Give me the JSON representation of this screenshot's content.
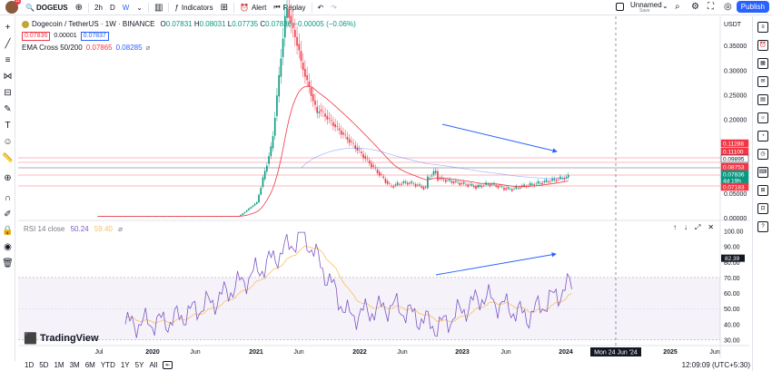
{
  "topbar": {
    "avatar_badge": "11",
    "symbol": "DOGEUS",
    "intervals": [
      "2h",
      "D",
      "W"
    ],
    "indicators_label": "Indicators",
    "alert_label": "Alert",
    "replay_label": "Replay",
    "layout_name": "Unnamed",
    "save_label": "Save",
    "publish_label": "Publish"
  },
  "legend": {
    "title": "Dogecoin / TetherUS · 1W · BINANCE",
    "o": "0.07831",
    "h": "0.08031",
    "l": "0.07735",
    "c": "0.07836",
    "change": "−0.00005 (−0.06%)",
    "bid": "0.07836",
    "spread": "0.00001",
    "ask": "0.07837",
    "ema_label": "EMA Cross 50/200",
    "ema1": "0.07865",
    "ema2": "0.08285",
    "rsi_label": "RSI 14 close",
    "rsi1": "50.24",
    "rsi2": "59.40"
  },
  "price_axis": {
    "currency": "USDT",
    "ticks": [
      "0.35000",
      "0.30000",
      "0.25000",
      "0.20000",
      "0.15000",
      "0.10000",
      "0.05000",
      "0.00000"
    ],
    "labels": [
      {
        "text": "0.11288",
        "color": "#f23645"
      },
      {
        "text": "0.11100",
        "color": "#f23645"
      },
      {
        "text": "0.09895",
        "color": "#131722"
      },
      {
        "text": "0.08753",
        "color": "#f23645"
      },
      {
        "text": "0.07836",
        "color": "#089981"
      },
      {
        "text": "4d 19h",
        "color": "#089981"
      },
      {
        "text": "0.07183",
        "color": "#f23645"
      }
    ]
  },
  "rsi_axis": {
    "ticks": [
      "100.00",
      "90.00",
      "80.00",
      "70.00",
      "60.00",
      "50.00",
      "40.00",
      "30.00"
    ],
    "label": "82.39"
  },
  "time_axis": {
    "ticks": [
      "Jul",
      "2020",
      "Jun",
      "2021",
      "Jun",
      "2022",
      "Jun",
      "2023",
      "Jun",
      "2024",
      "2025",
      "Jun"
    ],
    "cursor": "Mon 24 Jun '24"
  },
  "bottom": {
    "timeframes": [
      "1D",
      "5D",
      "1M",
      "3M",
      "6M",
      "YTD",
      "1Y",
      "5Y",
      "All"
    ],
    "clock": "12:09:09 (UTC+5:30)"
  },
  "brand": "TradingView",
  "colors": {
    "up": "#089981",
    "down": "#f23645",
    "ema_fast": "#f23645",
    "accent": "#2962ff",
    "rsi_line": "#7e57c2",
    "rsi_ma": "#f7c25e"
  },
  "chart_data": [
    {
      "type": "candlestick",
      "title": "Dogecoin / TetherUS · 1W · BINANCE",
      "x": [
        "2019-07",
        "2020-01",
        "2020-07",
        "2021-01",
        "2021-05",
        "2021-07",
        "2022-01",
        "2022-07",
        "2023-01",
        "2023-07",
        "2024-01"
      ],
      "close_approx": [
        0.003,
        0.002,
        0.003,
        0.01,
        0.45,
        0.2,
        0.17,
        0.06,
        0.08,
        0.06,
        0.078
      ],
      "ema_fast_approx": [
        0.003,
        0.002,
        0.003,
        0.008,
        0.12,
        0.2,
        0.19,
        0.1,
        0.08,
        0.07,
        0.079
      ],
      "ylim": [
        0,
        0.4
      ],
      "horizontal_levels": [
        0.11288,
        0.111,
        0.09895,
        0.08753,
        0.07183
      ]
    },
    {
      "type": "line",
      "title": "RSI 14 close",
      "x": [
        "2019-07",
        "2020-01",
        "2020-07",
        "2021-01",
        "2021-05",
        "2021-07",
        "2022-01",
        "2022-07",
        "2023-01",
        "2023-07",
        "2024-01"
      ],
      "series": [
        {
          "name": "RSI",
          "values": [
            40,
            42,
            55,
            75,
            98,
            45,
            52,
            38,
            58,
            45,
            66
          ]
        },
        {
          "name": "RSI MA",
          "values": [
            42,
            44,
            52,
            70,
            85,
            60,
            50,
            40,
            52,
            48,
            59
          ]
        }
      ],
      "ylim": [
        28,
        102
      ],
      "bands": [
        70,
        30
      ]
    }
  ]
}
